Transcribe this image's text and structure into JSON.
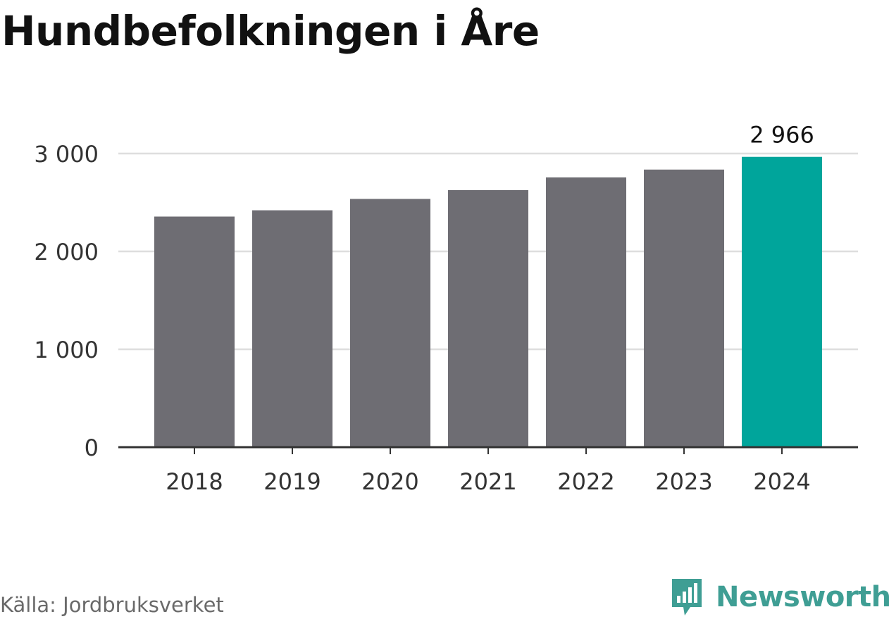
{
  "chart_data": {
    "type": "bar",
    "title": "Hundbefolkningen i Åre",
    "categories": [
      "2018",
      "2019",
      "2020",
      "2021",
      "2022",
      "2023",
      "2024"
    ],
    "values": [
      2356,
      2420,
      2536,
      2626,
      2756,
      2836,
      2966
    ],
    "value_labels": [
      "",
      "",
      "",
      "",
      "",
      "",
      "2 966"
    ],
    "ylim": [
      0,
      3000
    ],
    "yticks": [
      0,
      1000,
      2000,
      3000
    ],
    "ytick_labels": [
      "0",
      "1 000",
      "2 000",
      "3 000"
    ],
    "xlabel": "",
    "ylabel": "",
    "grid": true,
    "colors": {
      "default": "#6e6d73",
      "highlight": "#00a59b"
    },
    "highlight_index": 6
  },
  "footer": {
    "source": "Källa: Jordbruksverket",
    "brand": "Newsworthy",
    "brand_color": "#3f9e94"
  }
}
